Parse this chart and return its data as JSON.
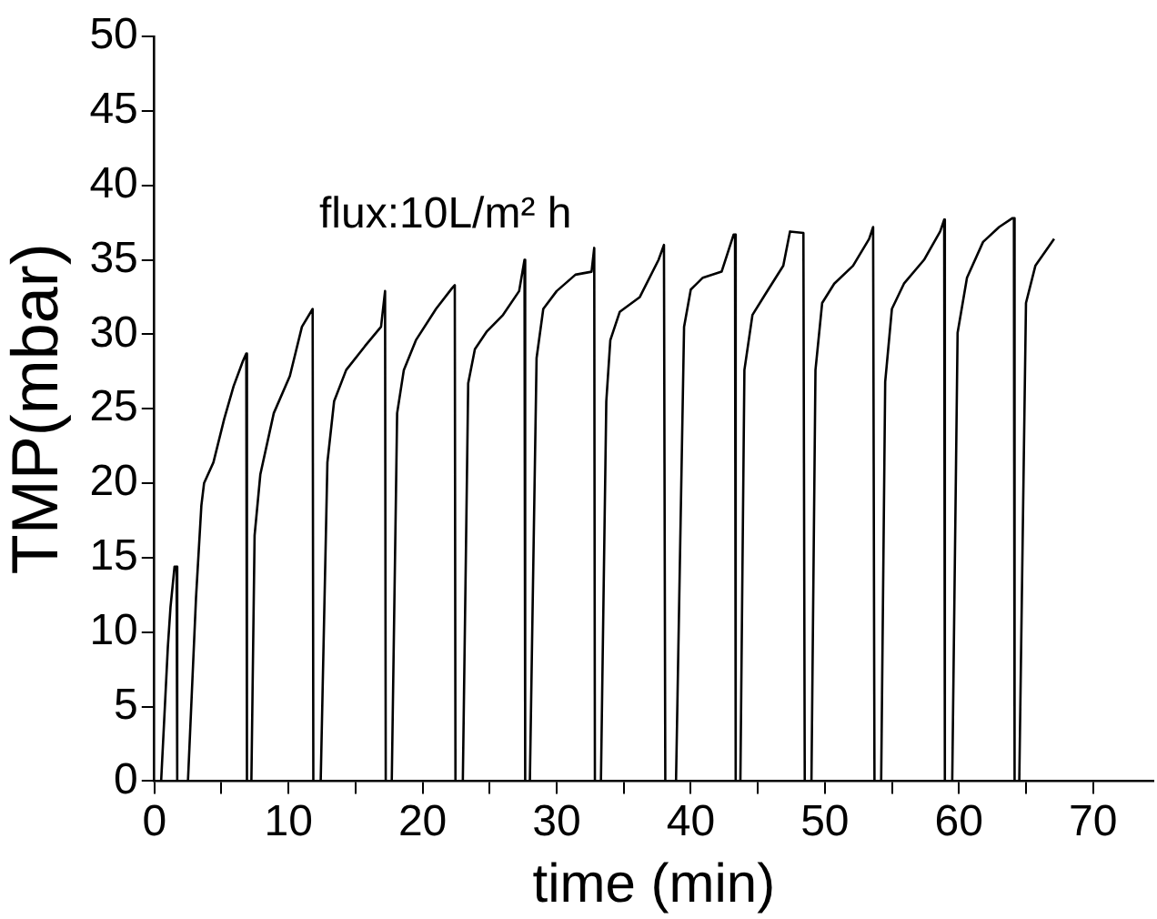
{
  "chart_data": {
    "type": "line",
    "xlabel": "time (min)",
    "ylabel": "TMP(mbar)",
    "annotations": [
      "flux:10L/m² h"
    ],
    "x": [
      0.5,
      1.0,
      1.2,
      1.5,
      1.65,
      1.7,
      2.5,
      3.1,
      3.5,
      3.7,
      4.4,
      5.2,
      5.9,
      6.6,
      6.85,
      6.9,
      7.23,
      7.47,
      7.9,
      8.9,
      10.1,
      11.0,
      11.8,
      11.85,
      12.4,
      12.9,
      13.4,
      14.3,
      15.7,
      16.9,
      17.2,
      17.25,
      17.7,
      18.1,
      18.6,
      19.5,
      21.0,
      22.2,
      22.4,
      22.45,
      23.0,
      23.4,
      23.9,
      24.8,
      26.0,
      27.2,
      27.6,
      27.65,
      28.0,
      28.5,
      29.0,
      30.0,
      31.4,
      32.6,
      32.8,
      32.85,
      33.3,
      33.7,
      34.0,
      34.7,
      36.2,
      37.6,
      38.0,
      38.1,
      38.9,
      39.5,
      40.0,
      40.9,
      42.3,
      43.2,
      43.3,
      43.35,
      43.7,
      44.0,
      44.6,
      45.5,
      46.9,
      47.4,
      48.4,
      48.5,
      49.0,
      49.3,
      49.8,
      50.7,
      52.1,
      53.3,
      53.6,
      53.7,
      54.2,
      54.5,
      55.0,
      55.9,
      57.4,
      58.6,
      58.9,
      58.95,
      59.5,
      59.9,
      60.6,
      61.8,
      63.0,
      64.0,
      64.1,
      64.15,
      64.5,
      65.0,
      65.7,
      67.1
    ],
    "series": [
      {
        "color": "#000000",
        "values": [
          0,
          9,
          11.7,
          14.4,
          14.4,
          0,
          0,
          12.3,
          18.5,
          20,
          21.4,
          24.3,
          26.5,
          28.2,
          28.7,
          0,
          0,
          16.5,
          20.6,
          24.7,
          27.2,
          30.5,
          31.7,
          0,
          0,
          21.4,
          25.5,
          27.6,
          29.2,
          30.5,
          32.9,
          0,
          0,
          24.7,
          27.6,
          29.6,
          31.7,
          33.1,
          33.3,
          0,
          0,
          26.7,
          29.0,
          30.2,
          31.3,
          32.9,
          35.0,
          0,
          0,
          28.4,
          31.7,
          32.9,
          34.0,
          34.2,
          35.8,
          0,
          0,
          25.5,
          29.6,
          31.5,
          32.5,
          35.0,
          36.0,
          0,
          0,
          30.5,
          33.0,
          33.8,
          34.2,
          36.7,
          36.7,
          0,
          0,
          27.6,
          31.3,
          32.6,
          34.6,
          36.9,
          36.8,
          0,
          0,
          27.6,
          32.1,
          33.4,
          34.6,
          36.4,
          37.2,
          0,
          0,
          26.8,
          31.7,
          33.4,
          35.0,
          36.9,
          37.7,
          0,
          0,
          30.1,
          33.8,
          36.2,
          37.2,
          37.8,
          37.8,
          0,
          0,
          32.1,
          34.6,
          36.4
        ]
      }
    ],
    "xlim": [
      0,
      74.5
    ],
    "ylim": [
      0,
      50
    ],
    "xticks": [
      0,
      {
        "value": 5,
        "label": null
      },
      10,
      {
        "value": 15,
        "label": null
      },
      20,
      {
        "value": 25,
        "label": null
      },
      30,
      {
        "value": 35,
        "label": null
      },
      40,
      {
        "value": 45,
        "label": null
      },
      50,
      {
        "value": 55,
        "label": null
      },
      60,
      {
        "value": 65,
        "label": null
      },
      70
    ],
    "yticks": [
      0,
      5,
      10,
      15,
      20,
      25,
      30,
      35,
      40,
      45,
      50
    ],
    "grid": false,
    "legend": false,
    "marker": "none",
    "line_style": "solid"
  }
}
